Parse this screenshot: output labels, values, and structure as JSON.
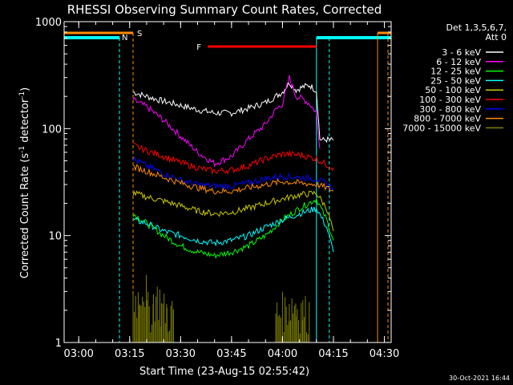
{
  "chart_data": {
    "type": "line",
    "title": "RHESSI Observing Summary Count Rates, Corrected",
    "xlabel": "Start Time (23-Aug-15 02:55:42)",
    "ylabel": "Corrected Count Rate (s⁻¹ detector⁻¹)",
    "ylabel_main": "Corrected Count Rate (s",
    "ylabel_sup1": "-1",
    "ylabel_mid": " detector",
    "ylabel_sup2": "-1",
    "ylabel_end": ")",
    "xlim": [
      "02:55:42",
      "04:32:00"
    ],
    "ylim": [
      1,
      1000
    ],
    "y_scale": "log",
    "x_ticks": [
      "03:00",
      "03:15",
      "03:30",
      "03:45",
      "04:00",
      "04:15",
      "04:30"
    ],
    "y_ticks": [
      "1",
      "10",
      "100",
      "1000"
    ],
    "legend_header": [
      "Det 1,3,5,6,7,",
      "Att 0"
    ],
    "legend_position": "right",
    "footer": "30-Oct-2021 16:44",
    "annotations": {
      "saa_label": "S",
      "night_label": "N",
      "flare_label": "F"
    },
    "intervals": {
      "night": [
        [
          "02:55:42",
          "03:12:00"
        ],
        [
          "04:10:00",
          "04:32:00"
        ]
      ],
      "saa": [
        [
          "02:55:42",
          "03:16:00"
        ],
        [
          "04:28:00",
          "04:32:00"
        ]
      ],
      "flare": [
        [
          "03:38:00",
          "04:10:00"
        ]
      ]
    },
    "series": [
      {
        "name": "3 - 6 keV",
        "color": "#000000",
        "x": [
          "03:16",
          "03:20",
          "03:25",
          "03:30",
          "03:35",
          "03:40",
          "03:45",
          "03:50",
          "03:55",
          "03:58",
          "04:00",
          "04:02",
          "04:04",
          "04:06",
          "04:08",
          "04:10",
          "04:11",
          "04:12",
          "04:13",
          "04:14",
          "04:15"
        ],
        "y": [
          220,
          200,
          180,
          165,
          150,
          140,
          140,
          155,
          175,
          200,
          220,
          270,
          230,
          245,
          255,
          225,
          80,
          78,
          79,
          78,
          78
        ]
      },
      {
        "name": "6 - 12 keV",
        "color": "#ff00ff",
        "x": [
          "03:16",
          "03:20",
          "03:25",
          "03:30",
          "03:35",
          "03:40",
          "03:45",
          "03:50",
          "03:55",
          "03:58",
          "04:00",
          "04:02",
          "04:04",
          "04:06",
          "04:08",
          "04:10",
          "04:11"
        ],
        "y": [
          185,
          160,
          120,
          85,
          60,
          47,
          55,
          80,
          110,
          150,
          170,
          300,
          200,
          190,
          170,
          140,
          65
        ]
      },
      {
        "name": "12 - 25 keV",
        "color": "#00ff00",
        "x": [
          "03:16",
          "03:20",
          "03:25",
          "03:30",
          "03:35",
          "03:40",
          "03:45",
          "03:50",
          "03:55",
          "04:00",
          "04:05",
          "04:10",
          "04:13",
          "04:15"
        ],
        "y": [
          16,
          13,
          10,
          8,
          7,
          6.5,
          7,
          8,
          10,
          14,
          18,
          22,
          14,
          9
        ]
      },
      {
        "name": "25 - 50 keV",
        "color": "#00ffff",
        "x": [
          "03:16",
          "03:20",
          "03:25",
          "03:30",
          "03:35",
          "03:40",
          "03:45",
          "03:50",
          "03:55",
          "04:00",
          "04:05",
          "04:10",
          "04:13",
          "04:15"
        ],
        "y": [
          14,
          13,
          11,
          10,
          9,
          8.5,
          9,
          10,
          12,
          14,
          16,
          18,
          12,
          7
        ]
      },
      {
        "name": "50 - 100 keV",
        "color": "#c8c800",
        "x": [
          "03:16",
          "03:20",
          "03:25",
          "03:30",
          "03:35",
          "03:40",
          "03:45",
          "03:50",
          "03:55",
          "04:00",
          "04:05",
          "04:10",
          "04:13",
          "04:15"
        ],
        "y": [
          25,
          23,
          21,
          19,
          17,
          16,
          16.5,
          18,
          20,
          22,
          24,
          25,
          18,
          11
        ]
      },
      {
        "name": "100 - 300 keV",
        "color": "#ff0000",
        "x": [
          "03:16",
          "03:20",
          "03:25",
          "03:30",
          "03:35",
          "03:40",
          "03:45",
          "03:50",
          "03:55",
          "04:00",
          "04:05",
          "04:10",
          "04:13",
          "04:15"
        ],
        "y": [
          70,
          62,
          55,
          48,
          43,
          40,
          41,
          45,
          52,
          58,
          57,
          52,
          46,
          43
        ]
      },
      {
        "name": "300 - 800 keV",
        "color": "#0000ff",
        "x": [
          "03:16",
          "03:20",
          "03:25",
          "03:30",
          "03:35",
          "03:40",
          "03:45",
          "03:50",
          "03:55",
          "04:00",
          "04:05",
          "04:10",
          "04:13",
          "04:15"
        ],
        "y": [
          52,
          45,
          38,
          33,
          30,
          29,
          29,
          31,
          34,
          36,
          35,
          34,
          30,
          28
        ]
      },
      {
        "name": "800 - 7000 keV",
        "color": "#ff8c00",
        "x": [
          "03:16",
          "03:20",
          "03:25",
          "03:30",
          "03:35",
          "03:40",
          "03:45",
          "03:50",
          "03:55",
          "04:00",
          "04:05",
          "04:10",
          "04:13",
          "04:15"
        ],
        "y": [
          44,
          40,
          35,
          31,
          28,
          26,
          26,
          28,
          30,
          32,
          31,
          30,
          28,
          26
        ]
      },
      {
        "name": "7000 - 15000 keV",
        "color": "#808000",
        "x": [
          "03:16",
          "03:18",
          "03:20",
          "03:22",
          "03:24",
          "03:26",
          "03:28",
          "03:58",
          "04:00",
          "04:02",
          "04:04",
          "04:06",
          "04:08"
        ],
        "y": [
          2.5,
          3,
          2,
          2.5,
          2,
          1.8,
          2.2,
          1.8,
          2,
          2.2,
          2,
          1.9,
          2
        ]
      }
    ]
  }
}
